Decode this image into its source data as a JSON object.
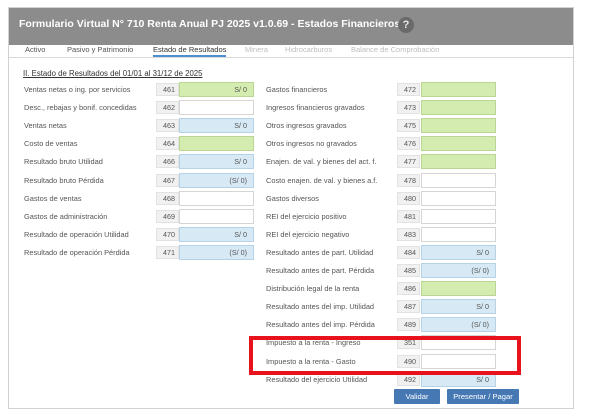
{
  "window": {
    "title": "Formulario Virtual N° 710 Renta Anual PJ 2025 v1.0.69 - Estados Financieros",
    "help_icon": "?"
  },
  "tabs": [
    {
      "label": "Activo",
      "state": "normal"
    },
    {
      "label": "Pasivo y Patrimonio",
      "state": "normal"
    },
    {
      "label": "Estado de Resultados",
      "state": "active"
    },
    {
      "label": "Minera",
      "state": "disabled"
    },
    {
      "label": "Hidrocarburos",
      "state": "disabled"
    },
    {
      "label": "Balance de Comprobación",
      "state": "disabled"
    }
  ],
  "section_title": "II. Estado de Resultados del 01/01 al 31/12 de 2025",
  "left_rows": [
    {
      "label": "Ventas netas o ing. por servicios",
      "code": "461",
      "value": "S/ 0",
      "style": "green"
    },
    {
      "label": "Desc., rebajas y bonif. concedidas",
      "code": "462",
      "value": "",
      "style": "white"
    },
    {
      "label": "Ventas netas",
      "code": "463",
      "value": "S/ 0",
      "style": "blue"
    },
    {
      "label": "Costo de ventas",
      "code": "464",
      "value": "",
      "style": "green"
    },
    {
      "label": "Resultado bruto Utilidad",
      "code": "466",
      "value": "S/ 0",
      "style": "blue"
    },
    {
      "label": "Resultado bruto Pérdida",
      "code": "467",
      "value": "(S/ 0)",
      "style": "blue"
    },
    {
      "label": "Gastos de ventas",
      "code": "468",
      "value": "",
      "style": "white"
    },
    {
      "label": "Gastos de administración",
      "code": "469",
      "value": "",
      "style": "white"
    },
    {
      "label": "Resultado de operación Utilidad",
      "code": "470",
      "value": "S/ 0",
      "style": "blue"
    },
    {
      "label": "Resultado de operación Pérdida",
      "code": "471",
      "value": "(S/ 0)",
      "style": "blue"
    }
  ],
  "right_rows": [
    {
      "label": "Gastos financieros",
      "code": "472",
      "value": "",
      "style": "green"
    },
    {
      "label": "Ingresos financieros gravados",
      "code": "473",
      "value": "",
      "style": "green"
    },
    {
      "label": "Otros ingresos gravados",
      "code": "475",
      "value": "",
      "style": "green"
    },
    {
      "label": "Otros ingresos no gravados",
      "code": "476",
      "value": "",
      "style": "green"
    },
    {
      "label": "Enajen. de val. y bienes del act. f.",
      "code": "477",
      "value": "",
      "style": "green"
    },
    {
      "label": "Costo enajen. de val. y bienes a.f.",
      "code": "478",
      "value": "",
      "style": "white"
    },
    {
      "label": "Gastos diversos",
      "code": "480",
      "value": "",
      "style": "white"
    },
    {
      "label": "REI del ejercicio positivo",
      "code": "481",
      "value": "",
      "style": "white"
    },
    {
      "label": "REI del ejercicio negativo",
      "code": "483",
      "value": "",
      "style": "white"
    },
    {
      "label": "Resultado antes de part. Utilidad",
      "code": "484",
      "value": "S/ 0",
      "style": "blue"
    },
    {
      "label": "Resultado antes de part. Pérdida",
      "code": "485",
      "value": "(S/ 0)",
      "style": "blue"
    },
    {
      "label": "Distribución legal de la renta",
      "code": "486",
      "value": "",
      "style": "green"
    },
    {
      "label": "Resultado antes del imp. Utilidad",
      "code": "487",
      "value": "S/ 0",
      "style": "blue"
    },
    {
      "label": "Resultado antes del imp. Pérdida",
      "code": "489",
      "value": "(S/ 0)",
      "style": "blue"
    },
    {
      "label": "Impuesto a la renta - Ingreso",
      "code": "351",
      "value": "",
      "style": "white"
    },
    {
      "label": "Impuesto a la renta - Gasto",
      "code": "490",
      "value": "",
      "style": "white"
    },
    {
      "label": "Resultado del ejercicio Utilidad",
      "code": "492",
      "value": "S/ 0",
      "style": "blue"
    }
  ],
  "buttons": {
    "validate": "Validar",
    "submit": "Presentar / Pagar"
  },
  "colors": {
    "titlebar": "#8c8c8c",
    "active_tab_underline": "#4e8fcf",
    "calculated_field": "#d6e9f5",
    "editable_field": "#d4ecb0",
    "button": "#4679b4",
    "highlight_box": "#e8121c"
  }
}
